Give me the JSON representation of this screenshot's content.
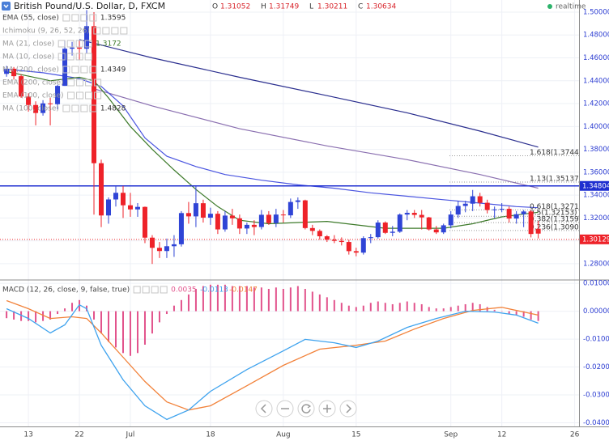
{
  "chart_data": [
    {
      "type": "candlestick",
      "title": "British Pound/U.S. Dollar, D, FXCM",
      "ohlc_labels": [
        "O",
        "H",
        "L",
        "C"
      ],
      "ohlc_values": [
        1.31052,
        1.31749,
        1.30211,
        1.30634
      ],
      "status": "realtime",
      "indicators": [
        {
          "name": "EMA (55, close)",
          "value": 1.3595,
          "color": "#333333"
        },
        {
          "name": "Ichimoku (9, 26, 52, 26)"
        },
        {
          "name": "MA (21, close)",
          "value": 1.3172,
          "color": "#3d7a2a"
        },
        {
          "name": "MA (10, close)"
        },
        {
          "name": "MA (200, close)",
          "value": 1.4349,
          "color": "#333333"
        },
        {
          "name": "EMA (200, close)"
        },
        {
          "name": "EMA (100, close)"
        },
        {
          "name": "MA (100, close)",
          "value": 1.4828,
          "color": "#333333"
        }
      ],
      "xlim": [
        -0.9,
        78.6
      ],
      "xticks": [
        {
          "value": 3,
          "label": "13"
        },
        {
          "value": 10,
          "label": "22"
        },
        {
          "value": 17,
          "label": "Jul"
        },
        {
          "value": 28,
          "label": "18"
        },
        {
          "value": 38,
          "label": "Aug"
        },
        {
          "value": 48,
          "label": "15"
        },
        {
          "value": 61,
          "label": "Sep"
        },
        {
          "value": 68,
          "label": "12"
        },
        {
          "value": 78,
          "label": "26"
        }
      ],
      "ylim": [
        1.2665,
        1.5106
      ],
      "yticks": [
        {
          "value": 1.28,
          "label": "1.28000"
        },
        {
          "value": 1.3,
          "label": "1.30000"
        },
        {
          "value": 1.32,
          "label": "1.32000"
        },
        {
          "value": 1.34,
          "label": "1.34000"
        },
        {
          "value": 1.36,
          "label": "1.36000"
        },
        {
          "value": 1.38,
          "label": "1.38000"
        },
        {
          "value": 1.4,
          "label": "1.40000"
        },
        {
          "value": 1.42,
          "label": "1.42000"
        },
        {
          "value": 1.44,
          "label": "1.44000"
        },
        {
          "value": 1.46,
          "label": "1.46000"
        },
        {
          "value": 1.48,
          "label": "1.48000"
        },
        {
          "value": 1.5,
          "label": "1.50000"
        }
      ],
      "grid": true,
      "up_color": "#2f44d6",
      "down_color": "#ee2229",
      "candles": {
        "open": [
          1.446,
          1.4505,
          1.444,
          1.4262,
          1.4188,
          1.4118,
          1.4202,
          1.4195,
          1.4355,
          1.468,
          1.469,
          1.468,
          1.4877,
          1.3679,
          1.3222,
          1.3362,
          1.342,
          1.3311,
          1.3275,
          1.3297,
          1.3028,
          1.2939,
          1.2911,
          1.2953,
          1.297,
          1.3243,
          1.3214,
          1.3329,
          1.3203,
          1.3237,
          1.31,
          1.3221,
          1.3197,
          1.3108,
          1.314,
          1.3121,
          1.3228,
          1.3155,
          1.323,
          1.3223,
          1.334,
          1.3354,
          1.3112,
          1.3087,
          1.304,
          1.301,
          1.3,
          1.299,
          1.291,
          1.2897,
          1.3024,
          1.3032,
          1.316,
          1.307,
          1.308,
          1.323,
          1.3245,
          1.3227,
          1.3205,
          1.31,
          1.3074,
          1.3136,
          1.323,
          1.3305,
          1.3325,
          1.339,
          1.3333,
          1.327,
          1.3275,
          1.328,
          1.3195,
          1.3233,
          1.3257,
          1.31052
        ],
        "high": [
          1.453,
          1.452,
          1.4455,
          1.429,
          1.422,
          1.423,
          1.425,
          1.4365,
          1.475,
          1.474,
          1.475,
          1.5018,
          1.5,
          1.371,
          1.338,
          1.348,
          1.348,
          1.342,
          1.333,
          1.33,
          1.305,
          1.299,
          1.302,
          1.305,
          1.326,
          1.334,
          1.348,
          1.336,
          1.329,
          1.326,
          1.326,
          1.328,
          1.323,
          1.316,
          1.318,
          1.327,
          1.326,
          1.328,
          1.327,
          1.337,
          1.338,
          1.336,
          1.314,
          1.31,
          1.305,
          1.305,
          1.303,
          1.301,
          1.294,
          1.304,
          1.306,
          1.318,
          1.317,
          1.313,
          1.324,
          1.327,
          1.327,
          1.327,
          1.321,
          1.313,
          1.315,
          1.326,
          1.335,
          1.335,
          1.3445,
          1.342,
          1.336,
          1.33,
          1.333,
          1.33,
          1.326,
          1.327,
          1.327,
          1.31749
        ],
        "low": [
          1.4435,
          1.441,
          1.425,
          1.413,
          1.401,
          1.4095,
          1.401,
          1.415,
          1.4355,
          1.462,
          1.458,
          1.464,
          1.3229,
          1.312,
          1.315,
          1.33,
          1.32,
          1.321,
          1.321,
          1.298,
          1.2798,
          1.285,
          1.285,
          1.286,
          1.295,
          1.315,
          1.312,
          1.316,
          1.314,
          1.306,
          1.308,
          1.314,
          1.306,
          1.306,
          1.305,
          1.31,
          1.314,
          1.312,
          1.316,
          1.32,
          1.328,
          1.31,
          1.305,
          1.301,
          1.299,
          1.298,
          1.296,
          1.288,
          1.2865,
          1.288,
          1.298,
          1.302,
          1.306,
          1.304,
          1.307,
          1.318,
          1.32,
          1.31,
          1.309,
          1.306,
          1.306,
          1.311,
          1.32,
          1.325,
          1.326,
          1.33,
          1.324,
          1.32,
          1.325,
          1.316,
          1.315,
          1.312,
          1.303,
          1.30211
        ],
        "close": [
          1.4505,
          1.444,
          1.4262,
          1.4188,
          1.4118,
          1.4202,
          1.4195,
          1.4355,
          1.468,
          1.469,
          1.468,
          1.4877,
          1.3679,
          1.3222,
          1.3362,
          1.342,
          1.3311,
          1.3275,
          1.3297,
          1.3028,
          1.2939,
          1.2911,
          1.2953,
          1.297,
          1.3243,
          1.3214,
          1.3329,
          1.3203,
          1.3237,
          1.31,
          1.3221,
          1.3197,
          1.3108,
          1.314,
          1.3121,
          1.3228,
          1.3155,
          1.323,
          1.3223,
          1.334,
          1.3354,
          1.3112,
          1.3087,
          1.304,
          1.301,
          1.3,
          1.299,
          1.291,
          1.2897,
          1.3024,
          1.3032,
          1.316,
          1.307,
          1.308,
          1.323,
          1.3245,
          1.3227,
          1.3205,
          1.31,
          1.3074,
          1.3136,
          1.323,
          1.3305,
          1.3325,
          1.339,
          1.3333,
          1.327,
          1.3275,
          1.328,
          1.3195,
          1.3233,
          1.3257,
          1.306,
          1.30634
        ]
      },
      "lines": [
        {
          "color": "#2b2f8f",
          "x": [
            10,
            20,
            32,
            44,
            55,
            65,
            73
          ],
          "values": [
            1.476,
            1.46,
            1.443,
            1.427,
            1.412,
            1.396,
            1.382
          ]
        },
        {
          "color": "#8a6fb0",
          "x": [
            12,
            20,
            32,
            44,
            55,
            65,
            73
          ],
          "values": [
            1.433,
            1.418,
            1.398,
            1.383,
            1.371,
            1.358,
            1.346
          ]
        },
        {
          "color": "#4a55e0",
          "x": [
            0,
            5,
            10,
            13,
            16,
            19,
            22,
            26,
            30,
            35,
            40,
            45,
            50,
            55,
            60,
            65,
            70,
            73
          ],
          "values": [
            1.45,
            1.447,
            1.442,
            1.435,
            1.418,
            1.39,
            1.374,
            1.365,
            1.358,
            1.353,
            1.349,
            1.346,
            1.342,
            1.339,
            1.336,
            1.333,
            1.33,
            1.329
          ]
        },
        {
          "color": "#3d7a2a",
          "x": [
            0,
            3,
            6,
            10,
            12,
            14,
            17,
            20,
            23,
            26,
            29,
            32,
            36,
            40,
            44,
            48,
            52,
            56,
            60,
            64,
            68,
            73
          ],
          "values": [
            1.448,
            1.444,
            1.44,
            1.443,
            1.44,
            1.425,
            1.4,
            1.38,
            1.362,
            1.345,
            1.33,
            1.318,
            1.315,
            1.316,
            1.317,
            1.314,
            1.311,
            1.311,
            1.311,
            1.315,
            1.321,
            1.325
          ]
        }
      ],
      "levels": [
        {
          "value": 1.34804,
          "color": "#1f2fd0",
          "style": "solid"
        },
        {
          "value": 1.30129,
          "color": "#ee2229",
          "style": "dotted"
        }
      ],
      "fib_levels": [
        {
          "value": 1.3744,
          "label": "1.618(1.3744"
        },
        {
          "value": 1.35137,
          "label": "1.13(1.35137"
        },
        {
          "value": 1.3271,
          "label": "0.618(1.3271"
        },
        {
          "value": 1.32153,
          "label": "0.5(1.32153)"
        },
        {
          "value": 1.3159,
          "label": "0.382(1.3159"
        },
        {
          "value": 1.309,
          "label": "0.236(1.3090"
        }
      ]
    },
    {
      "type": "macd",
      "legend_label": "MACD (12, 26, close, 9, false, true)",
      "legend_values": [
        0.0035,
        -0.0113,
        -0.0147
      ],
      "ylim": [
        -0.0413,
        0.0109
      ],
      "yticks": [
        {
          "value": 0.01,
          "label": "0.01000"
        },
        {
          "value": 0,
          "label": "0.00000"
        },
        {
          "value": -0.01,
          "label": "-0.01000"
        },
        {
          "value": -0.02,
          "label": "-0.02000"
        },
        {
          "value": -0.03,
          "label": "-0.03000"
        },
        {
          "value": -0.04,
          "label": "-0.04000"
        }
      ],
      "histogram": {
        "color": "#e2538c",
        "values": [
          -0.0025,
          -0.003,
          -0.0035,
          -0.0035,
          -0.004,
          -0.0035,
          -0.003,
          -0.001,
          0.001,
          0.003,
          0.004,
          0.002,
          -0.003,
          -0.008,
          -0.011,
          -0.013,
          -0.015,
          -0.016,
          -0.015,
          -0.012,
          -0.008,
          -0.004,
          -0.001,
          0.002,
          0.004,
          0.006,
          0.008,
          0.009,
          0.0095,
          0.0095,
          0.0095,
          0.009,
          0.009,
          0.009,
          0.0085,
          0.0085,
          0.008,
          0.0085,
          0.008,
          0.0085,
          0.009,
          0.008,
          0.007,
          0.006,
          0.005,
          0.004,
          0.003,
          0.002,
          0.0015,
          0.002,
          0.003,
          0.0035,
          0.003,
          0.0025,
          0.003,
          0.0035,
          0.003,
          0.0025,
          0.0015,
          0.001,
          0.001,
          0.0015,
          0.002,
          0.0025,
          0.003,
          0.0025,
          0.0015,
          0.0005,
          0,
          -0.001,
          -0.0015,
          -0.002,
          -0.003,
          -0.0035
        ]
      },
      "macd_line": {
        "color": "#3fa3ee",
        "x": [
          0,
          3,
          6,
          8,
          10,
          11,
          13,
          16,
          19,
          22,
          25,
          28,
          33,
          38,
          41,
          45,
          48,
          51,
          55,
          59,
          63,
          67,
          70,
          73
        ],
        "values": [
          0.0009,
          -0.0026,
          -0.0078,
          -0.0049,
          0.0023,
          0.0009,
          -0.0122,
          -0.0246,
          -0.0339,
          -0.0388,
          -0.0354,
          -0.0287,
          -0.0209,
          -0.0142,
          -0.0101,
          -0.0113,
          -0.013,
          -0.0107,
          -0.0058,
          -0.0026,
          0,
          -0.0003,
          -0.0014,
          -0.0043
        ]
      },
      "signal_line": {
        "color": "#f2823a",
        "x": [
          0,
          3,
          6,
          9,
          11,
          13,
          16,
          19,
          22,
          25,
          28,
          33,
          38,
          43,
          48,
          52,
          56,
          60,
          64,
          68,
          73
        ],
        "values": [
          0.0038,
          0.0009,
          -0.0026,
          -0.002,
          -0.0026,
          -0.0078,
          -0.0165,
          -0.0252,
          -0.0325,
          -0.0354,
          -0.0339,
          -0.0267,
          -0.0194,
          -0.0136,
          -0.0122,
          -0.0107,
          -0.0064,
          -0.0026,
          0.0003,
          0.0014,
          -0.0014
        ]
      }
    }
  ]
}
